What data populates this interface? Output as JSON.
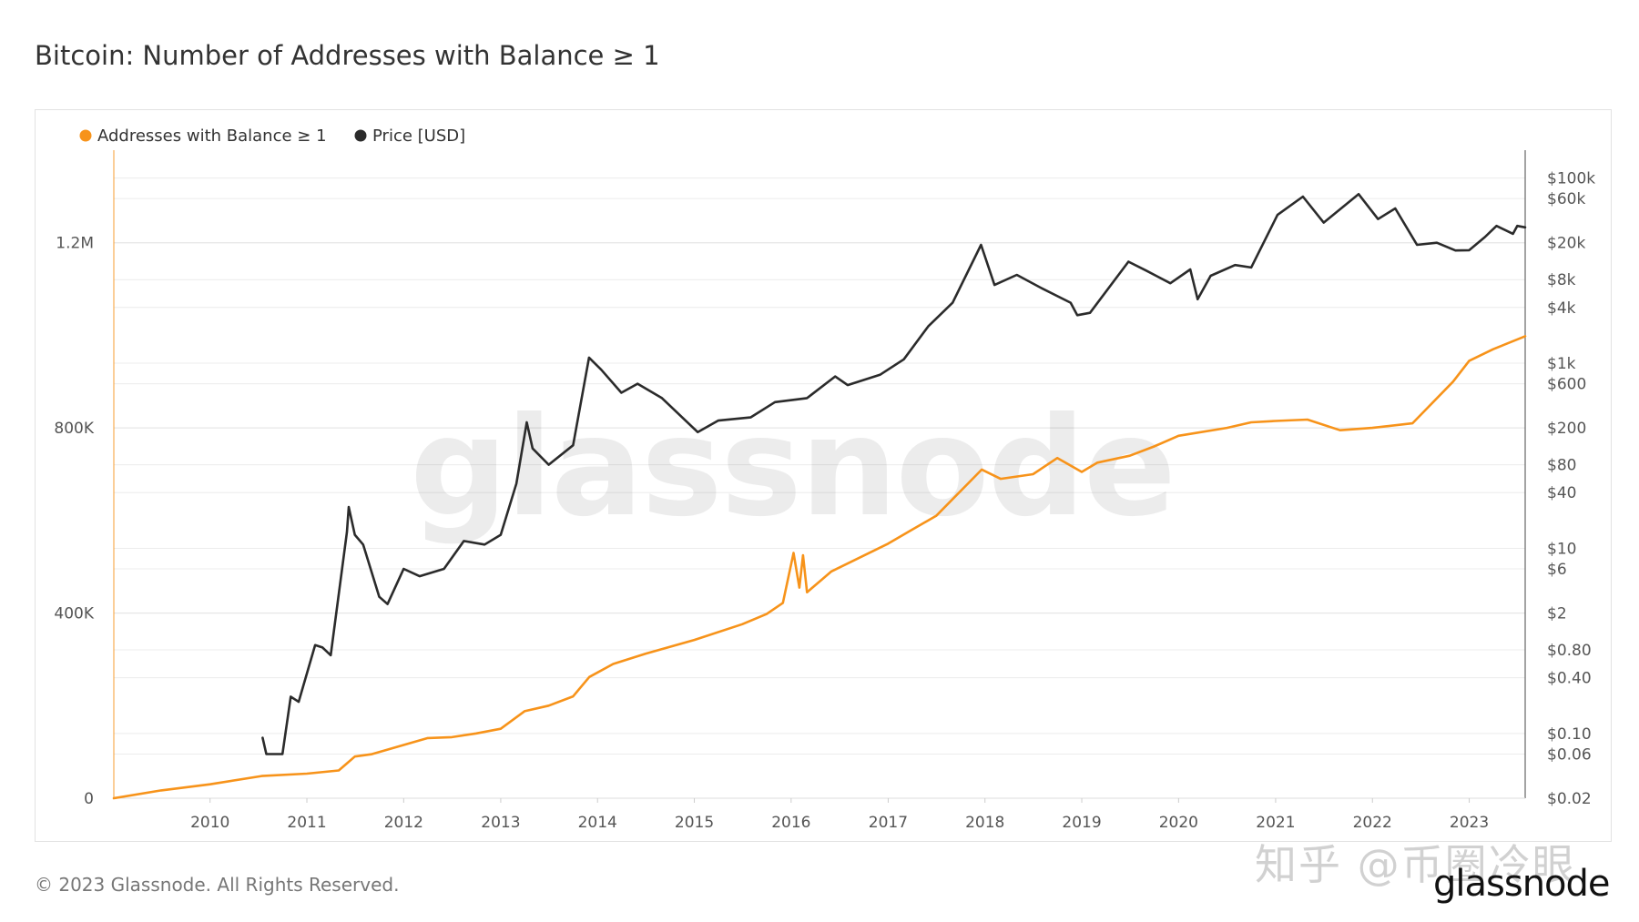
{
  "chart_data": {
    "type": "line",
    "title": "Bitcoin: Number of Addresses with Balance ≥ 1",
    "legend": [
      "Addresses with Balance ≥ 1",
      "Price [USD]"
    ],
    "legend_position": "top-left",
    "grid": true,
    "x_axis": {
      "type": "date",
      "range": [
        "2009-01-03",
        "2023-07-31"
      ],
      "tick_labels": [
        "2010",
        "2011",
        "2012",
        "2013",
        "2014",
        "2015",
        "2016",
        "2017",
        "2018",
        "2019",
        "2020",
        "2021",
        "2022",
        "2023"
      ]
    },
    "y_axis_left": {
      "range": [
        0,
        1400000
      ],
      "ticks": [
        0,
        400000,
        800000,
        1200000
      ],
      "tick_labels": [
        "0",
        "400K",
        "800K",
        "1.2M"
      ]
    },
    "y_axis_right": {
      "scale": "log",
      "range": [
        0.02,
        200000
      ],
      "ticks": [
        100000,
        60000,
        20000,
        8000,
        4000,
        1000,
        600,
        200,
        80,
        40,
        10,
        6,
        2,
        0.8,
        0.4,
        0.1,
        0.06,
        0.02
      ],
      "tick_labels": [
        "$100k",
        "$60k",
        "$20k",
        "$8k",
        "$4k",
        "$1k",
        "$600",
        "$200",
        "$80",
        "$40",
        "$10",
        "$6",
        "$2",
        "$0.80",
        "$0.40",
        "$0.10",
        "$0.06",
        "$0.02"
      ]
    },
    "series": [
      {
        "name": "Addresses with Balance ≥ 1",
        "axis": "left",
        "color": "#f7931a",
        "points": [
          [
            "2009-01-03",
            0
          ],
          [
            "2009-07-01",
            17000
          ],
          [
            "2010-01-01",
            30000
          ],
          [
            "2010-07-15",
            48000
          ],
          [
            "2011-01-01",
            53000
          ],
          [
            "2011-05-01",
            60000
          ],
          [
            "2011-07-01",
            90000
          ],
          [
            "2011-09-01",
            95000
          ],
          [
            "2012-01-01",
            115000
          ],
          [
            "2012-04-01",
            130000
          ],
          [
            "2012-07-01",
            132000
          ],
          [
            "2012-10-01",
            140000
          ],
          [
            "2013-01-01",
            150000
          ],
          [
            "2013-04-01",
            188000
          ],
          [
            "2013-07-01",
            200000
          ],
          [
            "2013-10-01",
            220000
          ],
          [
            "2013-12-01",
            262000
          ],
          [
            "2014-03-01",
            290000
          ],
          [
            "2014-07-01",
            312000
          ],
          [
            "2015-01-01",
            342000
          ],
          [
            "2015-07-01",
            376000
          ],
          [
            "2015-10-01",
            398000
          ],
          [
            "2015-12-01",
            422000
          ],
          [
            "2016-01-10",
            530000
          ],
          [
            "2016-02-01",
            455000
          ],
          [
            "2016-02-15",
            525000
          ],
          [
            "2016-03-01",
            445000
          ],
          [
            "2016-06-01",
            490000
          ],
          [
            "2017-01-01",
            550000
          ],
          [
            "2017-04-01",
            580000
          ],
          [
            "2017-07-01",
            610000
          ],
          [
            "2017-12-20",
            710000
          ],
          [
            "2018-03-01",
            690000
          ],
          [
            "2018-07-01",
            700000
          ],
          [
            "2018-10-01",
            735000
          ],
          [
            "2019-01-01",
            705000
          ],
          [
            "2019-03-01",
            725000
          ],
          [
            "2019-07-01",
            740000
          ],
          [
            "2019-10-01",
            760000
          ],
          [
            "2020-01-01",
            783000
          ],
          [
            "2020-07-01",
            800000
          ],
          [
            "2020-10-01",
            812000
          ],
          [
            "2021-01-01",
            815000
          ],
          [
            "2021-05-01",
            818000
          ],
          [
            "2021-09-01",
            795000
          ],
          [
            "2022-01-01",
            800000
          ],
          [
            "2022-06-01",
            810000
          ],
          [
            "2022-11-01",
            900000
          ],
          [
            "2023-01-01",
            945000
          ],
          [
            "2023-04-01",
            970000
          ],
          [
            "2023-07-31",
            998000
          ]
        ]
      },
      {
        "name": "Price [USD]",
        "axis": "right",
        "color": "#2b2b2b",
        "points": [
          [
            "2010-07-18",
            0.09
          ],
          [
            "2010-08-01",
            0.06
          ],
          [
            "2010-10-01",
            0.06
          ],
          [
            "2010-11-01",
            0.25
          ],
          [
            "2010-12-01",
            0.22
          ],
          [
            "2011-02-01",
            0.9
          ],
          [
            "2011-03-01",
            0.85
          ],
          [
            "2011-04-01",
            0.7
          ],
          [
            "2011-06-01",
            15
          ],
          [
            "2011-06-08",
            28
          ],
          [
            "2011-07-01",
            14
          ],
          [
            "2011-08-01",
            11
          ],
          [
            "2011-10-01",
            3
          ],
          [
            "2011-11-01",
            2.5
          ],
          [
            "2012-01-01",
            6
          ],
          [
            "2012-03-01",
            5
          ],
          [
            "2012-06-01",
            6
          ],
          [
            "2012-08-15",
            12
          ],
          [
            "2012-11-01",
            11
          ],
          [
            "2013-01-01",
            14
          ],
          [
            "2013-03-01",
            50
          ],
          [
            "2013-04-09",
            230
          ],
          [
            "2013-05-01",
            120
          ],
          [
            "2013-07-01",
            80
          ],
          [
            "2013-10-01",
            130
          ],
          [
            "2013-11-30",
            1150
          ],
          [
            "2014-01-15",
            850
          ],
          [
            "2014-04-01",
            480
          ],
          [
            "2014-06-01",
            600
          ],
          [
            "2014-09-01",
            420
          ],
          [
            "2015-01-14",
            180
          ],
          [
            "2015-04-01",
            240
          ],
          [
            "2015-08-01",
            260
          ],
          [
            "2015-11-01",
            380
          ],
          [
            "2016-03-01",
            420
          ],
          [
            "2016-06-15",
            720
          ],
          [
            "2016-08-01",
            580
          ],
          [
            "2016-12-01",
            750
          ],
          [
            "2017-03-01",
            1100
          ],
          [
            "2017-06-01",
            2500
          ],
          [
            "2017-09-01",
            4500
          ],
          [
            "2017-12-17",
            19000
          ],
          [
            "2018-02-06",
            7000
          ],
          [
            "2018-05-01",
            9000
          ],
          [
            "2018-08-01",
            6500
          ],
          [
            "2018-11-20",
            4500
          ],
          [
            "2018-12-15",
            3300
          ],
          [
            "2019-02-01",
            3500
          ],
          [
            "2019-06-26",
            12500
          ],
          [
            "2019-09-01",
            10000
          ],
          [
            "2019-12-01",
            7300
          ],
          [
            "2020-02-14",
            10300
          ],
          [
            "2020-03-13",
            4900
          ],
          [
            "2020-05-01",
            8800
          ],
          [
            "2020-08-01",
            11500
          ],
          [
            "2020-10-01",
            10800
          ],
          [
            "2021-01-08",
            40000
          ],
          [
            "2021-04-14",
            63000
          ],
          [
            "2021-07-01",
            33000
          ],
          [
            "2021-11-10",
            67000
          ],
          [
            "2022-01-22",
            36000
          ],
          [
            "2022-03-28",
            47000
          ],
          [
            "2022-06-18",
            19000
          ],
          [
            "2022-09-01",
            20000
          ],
          [
            "2022-11-10",
            16500
          ],
          [
            "2023-01-01",
            16600
          ],
          [
            "2023-03-01",
            23000
          ],
          [
            "2023-04-14",
            30400
          ],
          [
            "2023-06-15",
            25000
          ],
          [
            "2023-07-01",
            30400
          ],
          [
            "2023-07-31",
            29300
          ]
        ]
      }
    ]
  },
  "watermark_text": "glassnode",
  "footer": {
    "copyright": "© 2023 Glassnode. All Rights Reserved.",
    "brand": "glassnode",
    "overlay_mark": "知乎 @币圈冷眼"
  }
}
